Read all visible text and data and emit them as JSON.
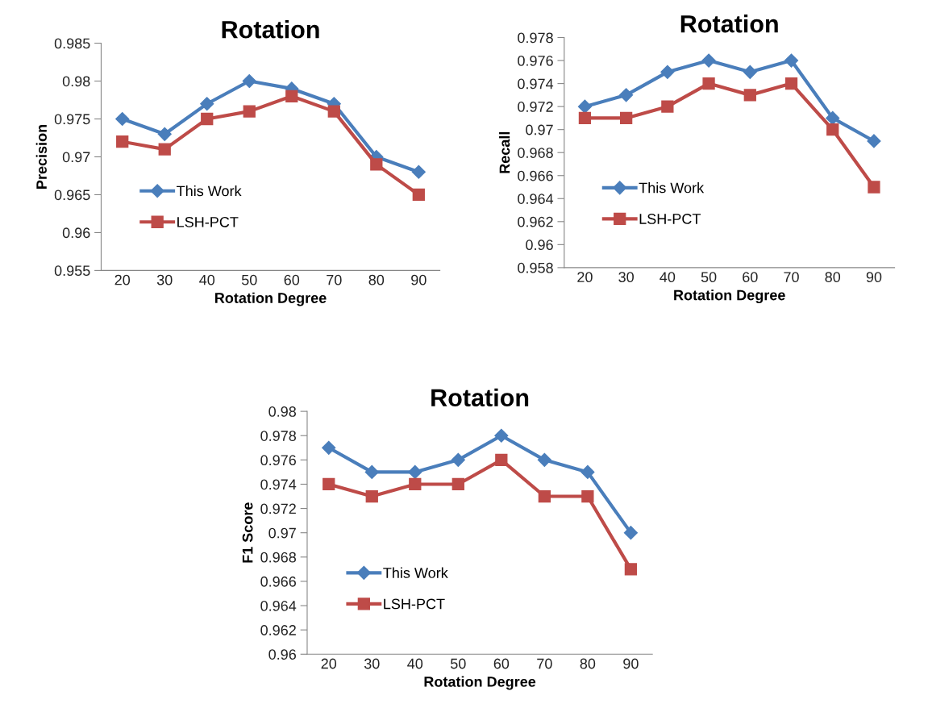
{
  "chart_data": [
    {
      "type": "line",
      "title": "Rotation",
      "xlabel": "Rotation Degree",
      "ylabel": "Precision",
      "categories": [
        "20",
        "30",
        "40",
        "50",
        "60",
        "70",
        "80",
        "90"
      ],
      "ylim": [
        0.955,
        0.985
      ],
      "yticks": [
        0.955,
        0.96,
        0.965,
        0.97,
        0.975,
        0.98,
        0.985
      ],
      "grid": false,
      "legend": "bottom left",
      "series": [
        {
          "name": "This Work",
          "color": "#4a7ebb",
          "marker": "diamond",
          "values": [
            0.975,
            0.973,
            0.977,
            0.98,
            0.979,
            0.977,
            0.97,
            0.968
          ]
        },
        {
          "name": "LSH-PCT",
          "color": "#be4b48",
          "marker": "square",
          "values": [
            0.972,
            0.971,
            0.975,
            0.976,
            0.978,
            0.976,
            0.969,
            0.965
          ]
        }
      ]
    },
    {
      "type": "line",
      "title": "Rotation",
      "xlabel": "Rotation Degree",
      "ylabel": "Recall",
      "categories": [
        "20",
        "30",
        "40",
        "50",
        "60",
        "70",
        "80",
        "90"
      ],
      "ylim": [
        0.958,
        0.978
      ],
      "yticks": [
        0.958,
        0.96,
        0.962,
        0.964,
        0.966,
        0.968,
        0.97,
        0.972,
        0.974,
        0.976,
        0.978
      ],
      "grid": false,
      "legend": "bottom left",
      "series": [
        {
          "name": "This Work",
          "color": "#4a7ebb",
          "marker": "diamond",
          "values": [
            0.972,
            0.973,
            0.975,
            0.976,
            0.975,
            0.976,
            0.971,
            0.969
          ]
        },
        {
          "name": "LSH-PCT",
          "color": "#be4b48",
          "marker": "square",
          "values": [
            0.971,
            0.971,
            0.972,
            0.974,
            0.973,
            0.974,
            0.97,
            0.965
          ]
        }
      ]
    },
    {
      "type": "line",
      "title": "Rotation",
      "xlabel": "Rotation Degree",
      "ylabel": "F1 Score",
      "categories": [
        "20",
        "30",
        "40",
        "50",
        "60",
        "70",
        "80",
        "90"
      ],
      "ylim": [
        0.96,
        0.98
      ],
      "yticks": [
        0.96,
        0.962,
        0.964,
        0.966,
        0.968,
        0.97,
        0.972,
        0.974,
        0.976,
        0.978,
        0.98
      ],
      "grid": false,
      "legend": "bottom left",
      "series": [
        {
          "name": "This Work",
          "color": "#4a7ebb",
          "marker": "diamond",
          "values": [
            0.977,
            0.975,
            0.975,
            0.976,
            0.978,
            0.976,
            0.975,
            0.97
          ]
        },
        {
          "name": "LSH-PCT",
          "color": "#be4b48",
          "marker": "square",
          "values": [
            0.974,
            0.973,
            0.974,
            0.974,
            0.976,
            0.973,
            0.973,
            0.967
          ]
        }
      ]
    }
  ]
}
